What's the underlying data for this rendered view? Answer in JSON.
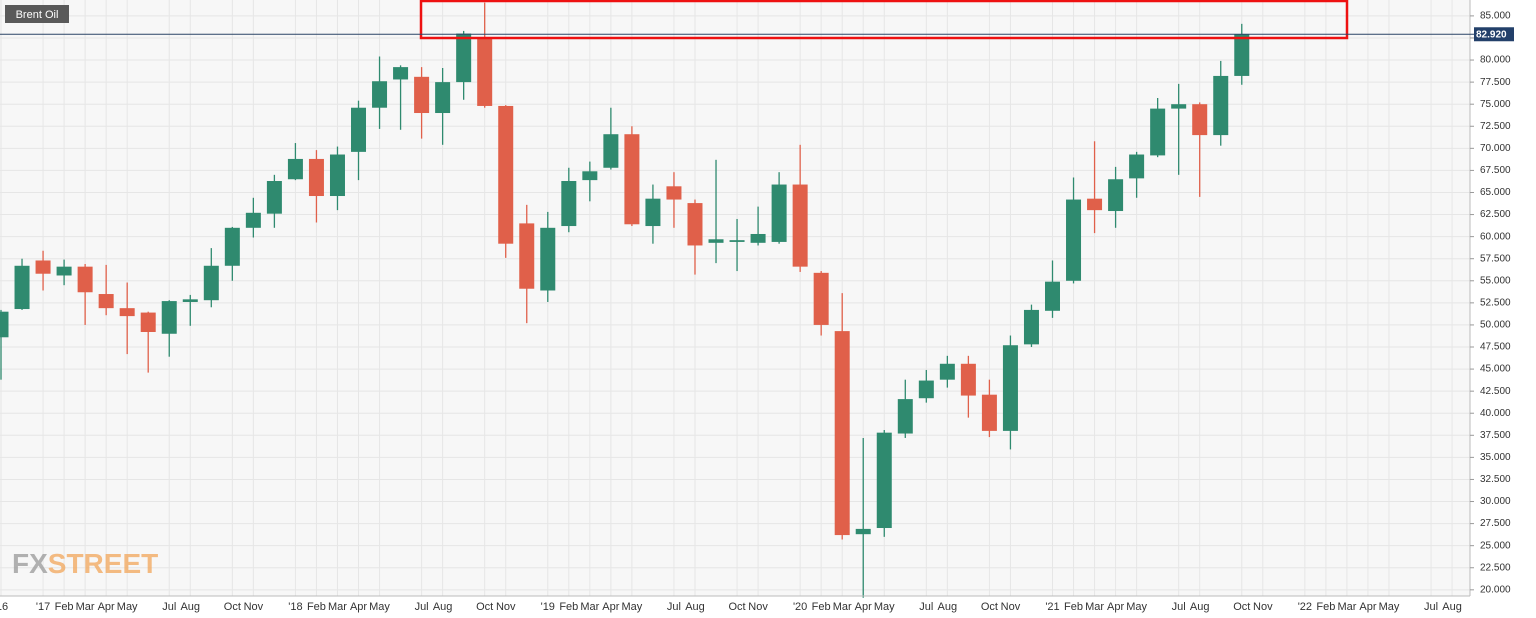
{
  "chart_data": {
    "type": "candlestick",
    "title": "Brent Oil",
    "watermark": [
      "FX",
      "STREET"
    ],
    "categories": [
      "'16",
      null,
      "'17",
      "Feb",
      "Mar",
      "Apr",
      "May",
      null,
      "Jul",
      "Aug",
      null,
      "Oct",
      "Nov",
      null,
      "'18",
      "Feb",
      "Mar",
      "Apr",
      "May",
      null,
      "Jul",
      "Aug",
      null,
      "Oct",
      "Nov",
      null,
      "'19",
      "Feb",
      "Mar",
      "Apr",
      "May",
      null,
      "Jul",
      "Aug",
      null,
      "Oct",
      "Nov",
      null,
      "'20",
      "Feb",
      "Mar",
      "Apr",
      "May",
      null,
      "Jul",
      "Aug",
      null,
      "Oct",
      "Nov",
      null,
      "'21",
      "Feb",
      "Mar",
      "Apr",
      "May",
      null,
      "Jul",
      "Aug",
      null,
      "Oct",
      "Nov",
      null,
      "'22",
      "Feb",
      "Mar",
      "Apr",
      "May",
      null,
      "Jul",
      "Aug"
    ],
    "open": [
      48.6,
      51.8,
      57.3,
      55.6,
      56.6,
      53.5,
      51.9,
      51.4,
      49.0,
      52.6,
      52.8,
      56.7,
      61.0,
      62.6,
      66.5,
      68.8,
      64.6,
      69.6,
      74.6,
      77.8,
      78.1,
      74.0,
      77.5,
      82.6,
      74.8,
      61.5,
      53.9,
      61.2,
      66.4,
      67.8,
      71.6,
      61.2,
      65.7,
      63.8,
      59.3,
      59.4,
      59.3,
      59.4,
      65.9,
      55.9,
      49.3,
      26.3,
      27.0,
      37.7,
      41.7,
      43.8,
      45.6,
      42.1,
      38.0,
      47.8,
      51.6,
      55.0,
      64.3,
      62.9,
      66.6,
      69.2,
      74.5,
      75.0,
      71.5,
      78.2,
      null,
      null,
      null,
      null,
      null,
      null,
      null,
      null,
      null,
      null
    ],
    "high": [
      51.7,
      57.5,
      58.4,
      57.4,
      56.9,
      56.8,
      54.8,
      51.5,
      52.8,
      53.4,
      58.7,
      61.1,
      64.4,
      67.0,
      70.6,
      69.8,
      70.2,
      75.4,
      80.4,
      79.4,
      79.2,
      79.1,
      83.3,
      86.5,
      74.9,
      63.6,
      62.8,
      67.8,
      68.5,
      74.6,
      72.5,
      65.9,
      67.3,
      64.2,
      68.7,
      62.0,
      63.4,
      67.3,
      70.4,
      56.1,
      53.6,
      37.2,
      38.1,
      43.8,
      44.9,
      46.5,
      46.5,
      43.8,
      48.8,
      52.3,
      57.3,
      66.7,
      70.8,
      67.9,
      69.6,
      75.7,
      77.3,
      75.2,
      79.9,
      84.1,
      null,
      null,
      null,
      null,
      null,
      null,
      null,
      null,
      null,
      null
    ],
    "low": [
      43.8,
      51.7,
      53.9,
      54.5,
      50.0,
      51.1,
      46.7,
      44.6,
      46.4,
      49.9,
      52.0,
      55.0,
      59.9,
      61.0,
      66.4,
      61.6,
      63.0,
      66.4,
      72.2,
      72.1,
      71.1,
      70.4,
      75.5,
      74.6,
      57.6,
      50.2,
      52.6,
      60.5,
      64.0,
      67.6,
      61.2,
      59.2,
      61.0,
      55.7,
      57.0,
      56.1,
      59.0,
      59.2,
      56.0,
      48.8,
      25.7,
      19.1,
      26.0,
      37.2,
      41.2,
      42.9,
      39.5,
      37.3,
      35.9,
      47.5,
      50.8,
      54.7,
      60.4,
      61.0,
      64.4,
      69.0,
      67.0,
      64.5,
      70.3,
      77.2,
      null,
      null,
      null,
      null,
      null,
      null,
      null,
      null,
      null,
      null
    ],
    "close": [
      51.5,
      56.7,
      55.8,
      56.6,
      53.7,
      51.9,
      51.0,
      49.2,
      52.7,
      52.9,
      56.7,
      61.0,
      62.7,
      66.3,
      68.8,
      64.6,
      69.3,
      74.6,
      77.6,
      79.2,
      74.0,
      77.5,
      83.0,
      74.8,
      59.2,
      54.1,
      61.0,
      66.3,
      67.4,
      71.6,
      61.4,
      64.3,
      64.2,
      59.0,
      59.7,
      59.6,
      60.3,
      65.9,
      56.6,
      50.0,
      26.2,
      26.9,
      37.8,
      41.6,
      43.7,
      45.6,
      42.0,
      38.0,
      47.7,
      51.7,
      54.9,
      64.2,
      63.0,
      66.5,
      69.3,
      74.5,
      75.0,
      71.5,
      78.2,
      82.92,
      null,
      null,
      null,
      null,
      null,
      null,
      null,
      null,
      null,
      null
    ],
    "up_color": "#2f8a6f",
    "down_color": "#e0604a",
    "last_price": {
      "value": 82.92,
      "label": "82.920"
    },
    "ylim": [
      19.3,
      86.8
    ],
    "yticks": [
      {
        "value": 20,
        "label": "20.000"
      },
      {
        "value": 22.5,
        "label": "22.500"
      },
      {
        "value": 25,
        "label": "25.000"
      },
      {
        "value": 27.5,
        "label": "27.500"
      },
      {
        "value": 30,
        "label": "30.000"
      },
      {
        "value": 32.5,
        "label": "32.500"
      },
      {
        "value": 35,
        "label": "35.000"
      },
      {
        "value": 37.5,
        "label": "37.500"
      },
      {
        "value": 40,
        "label": "40.000"
      },
      {
        "value": 42.5,
        "label": "42.500"
      },
      {
        "value": 45,
        "label": "45.000"
      },
      {
        "value": 47.5,
        "label": "47.500"
      },
      {
        "value": 50,
        "label": "50.000"
      },
      {
        "value": 52.5,
        "label": "52.500"
      },
      {
        "value": 55,
        "label": "55.000"
      },
      {
        "value": 57.5,
        "label": "57.500"
      },
      {
        "value": 60,
        "label": "60.000"
      },
      {
        "value": 62.5,
        "label": "62.500"
      },
      {
        "value": 65,
        "label": "65.000"
      },
      {
        "value": 67.5,
        "label": "67.500"
      },
      {
        "value": 70,
        "label": "70.000"
      },
      {
        "value": 72.5,
        "label": "72.500"
      },
      {
        "value": 75,
        "label": "75.000"
      },
      {
        "value": 77.5,
        "label": "77.500"
      },
      {
        "value": 80,
        "label": "80.000"
      },
      {
        "value": 82.5,
        "label": "82.500"
      },
      {
        "value": 85,
        "label": "85.000"
      }
    ],
    "grid": true
  }
}
